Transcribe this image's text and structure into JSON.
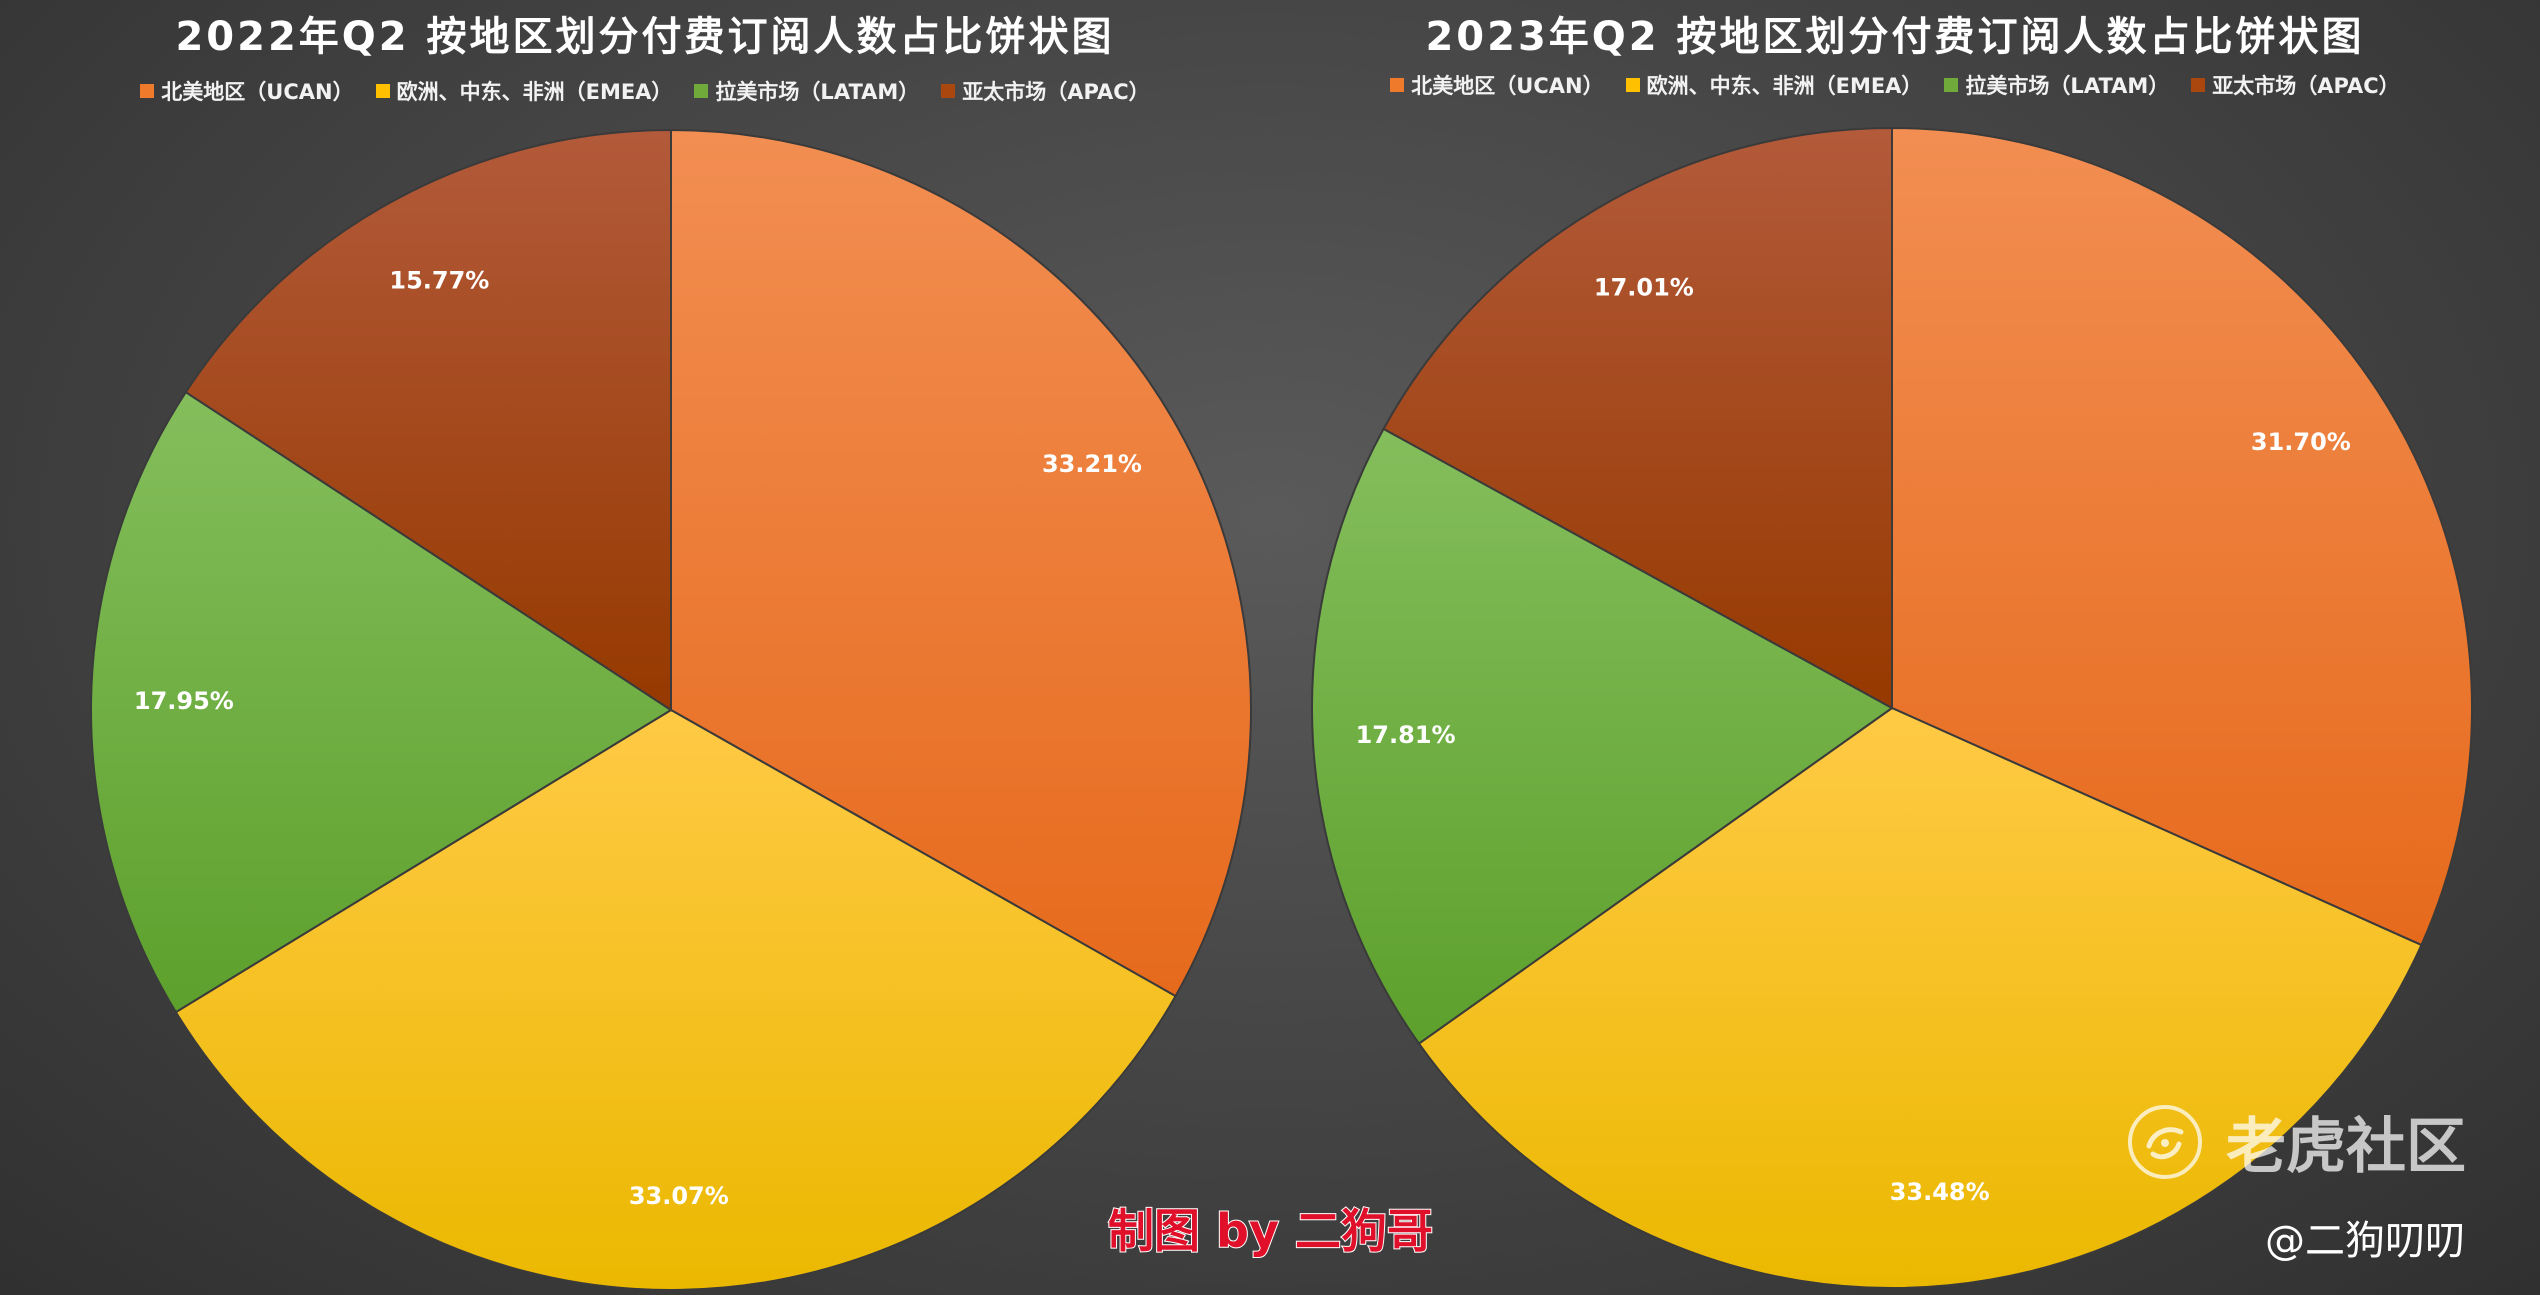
{
  "legend_colors": [
    "#f07a2c",
    "#ffc000",
    "#6faa3a",
    "#a9470e"
  ],
  "chart_data": [
    {
      "type": "pie",
      "title": "2022年Q2 按地区划分付费订阅人数占比饼状图",
      "categories": [
        "北美地区（UCAN）",
        "欧洲、中东、非洲（EMEA）",
        "拉美市场（LATAM）",
        "亚太市场（APAC）"
      ],
      "values": [
        33.21,
        33.07,
        17.95,
        15.77
      ],
      "labels": [
        "33.21%",
        "33.07%",
        "17.95%",
        "15.77%"
      ],
      "legend_position": "top"
    },
    {
      "type": "pie",
      "title": "2023年Q2 按地区划分付费订阅人数占比饼状图",
      "categories": [
        "北美地区（UCAN）",
        "欧洲、中东、非洲（EMEA）",
        "拉美市场（LATAM）",
        "亚太市场（APAC）"
      ],
      "values": [
        31.7,
        33.48,
        17.81,
        17.01
      ],
      "labels": [
        "31.70%",
        "33.48%",
        "17.81%",
        "17.01%"
      ],
      "legend_position": "top"
    }
  ],
  "credit": "制图 by 二狗哥",
  "watermark": {
    "brand": "老虎社区",
    "logo_icon": "tiger-community-logo-icon"
  },
  "author_handle": "@二狗叨叨"
}
